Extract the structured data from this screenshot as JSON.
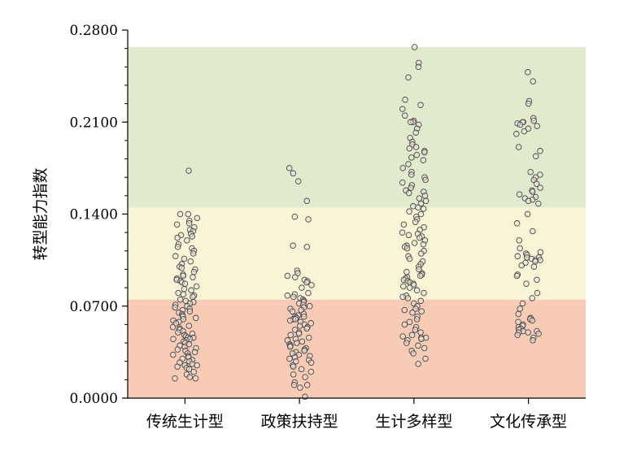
{
  "chart_data": {
    "type": "scatter",
    "subtype": "strip",
    "title": "",
    "xlabel": "",
    "ylabel": "转型能力指数",
    "ylim": [
      0,
      0.28
    ],
    "y_ticks": [
      "0.0000",
      "0.0700",
      "0.1400",
      "0.2100",
      "0.2800"
    ],
    "y_tick_values": [
      0,
      0.07,
      0.14,
      0.21,
      0.28
    ],
    "grid": false,
    "legend": "none",
    "bands": [
      {
        "from": 0.0,
        "to": 0.075,
        "color": "#f7cbb4"
      },
      {
        "from": 0.075,
        "to": 0.145,
        "color": "#f7f5d6"
      },
      {
        "from": 0.145,
        "to": 0.267,
        "color": "#dfebcc"
      }
    ],
    "marker": {
      "face": "#e8e1dc",
      "edge": "#4a4543"
    },
    "categories": [
      "传统生计型",
      "政策扶持型",
      "生计多样型",
      "文化传承型"
    ],
    "series": [
      {
        "category": "传统生计型",
        "values": [
          0.173,
          0.14,
          0.14,
          0.137,
          0.135,
          0.133,
          0.132,
          0.13,
          0.128,
          0.127,
          0.125,
          0.124,
          0.123,
          0.122,
          0.12,
          0.117,
          0.115,
          0.114,
          0.112,
          0.11,
          0.108,
          0.106,
          0.104,
          0.102,
          0.1,
          0.099,
          0.098,
          0.096,
          0.094,
          0.093,
          0.092,
          0.091,
          0.09,
          0.089,
          0.088,
          0.087,
          0.085,
          0.083,
          0.082,
          0.08,
          0.079,
          0.078,
          0.077,
          0.075,
          0.074,
          0.073,
          0.072,
          0.071,
          0.07,
          0.069,
          0.068,
          0.067,
          0.066,
          0.065,
          0.064,
          0.063,
          0.062,
          0.061,
          0.06,
          0.059,
          0.058,
          0.057,
          0.055,
          0.054,
          0.053,
          0.052,
          0.051,
          0.05,
          0.049,
          0.048,
          0.047,
          0.046,
          0.046,
          0.045,
          0.045,
          0.044,
          0.043,
          0.042,
          0.041,
          0.04,
          0.039,
          0.038,
          0.037,
          0.036,
          0.035,
          0.034,
          0.033,
          0.032,
          0.031,
          0.03,
          0.029,
          0.028,
          0.027,
          0.026,
          0.025,
          0.025,
          0.024,
          0.023,
          0.022,
          0.02,
          0.018,
          0.016,
          0.015,
          0.015
        ]
      },
      {
        "category": "政策扶持型",
        "values": [
          0.175,
          0.171,
          0.165,
          0.15,
          0.138,
          0.136,
          0.116,
          0.115,
          0.097,
          0.095,
          0.093,
          0.092,
          0.09,
          0.089,
          0.088,
          0.086,
          0.084,
          0.08,
          0.079,
          0.078,
          0.077,
          0.076,
          0.075,
          0.074,
          0.073,
          0.072,
          0.071,
          0.07,
          0.069,
          0.068,
          0.067,
          0.066,
          0.064,
          0.063,
          0.062,
          0.062,
          0.061,
          0.061,
          0.06,
          0.06,
          0.059,
          0.058,
          0.057,
          0.056,
          0.055,
          0.054,
          0.053,
          0.052,
          0.05,
          0.049,
          0.048,
          0.046,
          0.045,
          0.044,
          0.043,
          0.042,
          0.041,
          0.04,
          0.04,
          0.039,
          0.038,
          0.037,
          0.036,
          0.035,
          0.034,
          0.033,
          0.032,
          0.031,
          0.03,
          0.029,
          0.028,
          0.027,
          0.025,
          0.024,
          0.022,
          0.02,
          0.018,
          0.016,
          0.012,
          0.01,
          0.01,
          0.008,
          0.001
        ]
      },
      {
        "category": "生计多样型",
        "values": [
          0.267,
          0.255,
          0.252,
          0.244,
          0.227,
          0.223,
          0.22,
          0.215,
          0.211,
          0.21,
          0.21,
          0.208,
          0.205,
          0.202,
          0.198,
          0.195,
          0.193,
          0.191,
          0.19,
          0.188,
          0.187,
          0.185,
          0.183,
          0.181,
          0.178,
          0.175,
          0.172,
          0.17,
          0.168,
          0.166,
          0.164,
          0.162,
          0.16,
          0.158,
          0.157,
          0.156,
          0.154,
          0.152,
          0.15,
          0.148,
          0.146,
          0.145,
          0.144,
          0.142,
          0.14,
          0.138,
          0.136,
          0.134,
          0.132,
          0.13,
          0.128,
          0.126,
          0.125,
          0.124,
          0.123,
          0.122,
          0.12,
          0.118,
          0.117,
          0.116,
          0.115,
          0.114,
          0.112,
          0.11,
          0.108,
          0.106,
          0.104,
          0.102,
          0.1,
          0.098,
          0.096,
          0.095,
          0.094,
          0.093,
          0.092,
          0.091,
          0.09,
          0.089,
          0.088,
          0.087,
          0.086,
          0.085,
          0.084,
          0.082,
          0.08,
          0.078,
          0.077,
          0.076,
          0.074,
          0.072,
          0.07,
          0.068,
          0.067,
          0.066,
          0.065,
          0.062,
          0.06,
          0.058,
          0.056,
          0.054,
          0.052,
          0.05,
          0.048,
          0.047,
          0.046,
          0.046,
          0.045,
          0.044,
          0.042,
          0.04,
          0.038,
          0.036,
          0.034,
          0.03,
          0.026
        ]
      },
      {
        "category": "文化传承型",
        "values": [
          0.248,
          0.241,
          0.226,
          0.224,
          0.213,
          0.211,
          0.21,
          0.21,
          0.209,
          0.208,
          0.207,
          0.205,
          0.203,
          0.201,
          0.191,
          0.188,
          0.184,
          0.172,
          0.17,
          0.168,
          0.166,
          0.163,
          0.16,
          0.158,
          0.157,
          0.155,
          0.153,
          0.152,
          0.151,
          0.15,
          0.148,
          0.14,
          0.133,
          0.127,
          0.12,
          0.114,
          0.111,
          0.11,
          0.109,
          0.108,
          0.107,
          0.107,
          0.106,
          0.105,
          0.105,
          0.104,
          0.103,
          0.101,
          0.1,
          0.094,
          0.093,
          0.09,
          0.087,
          0.08,
          0.076,
          0.072,
          0.068,
          0.064,
          0.061,
          0.06,
          0.059,
          0.058,
          0.056,
          0.055,
          0.054,
          0.053,
          0.052,
          0.051,
          0.051,
          0.05,
          0.05,
          0.049,
          0.048,
          0.046,
          0.044
        ]
      }
    ]
  }
}
